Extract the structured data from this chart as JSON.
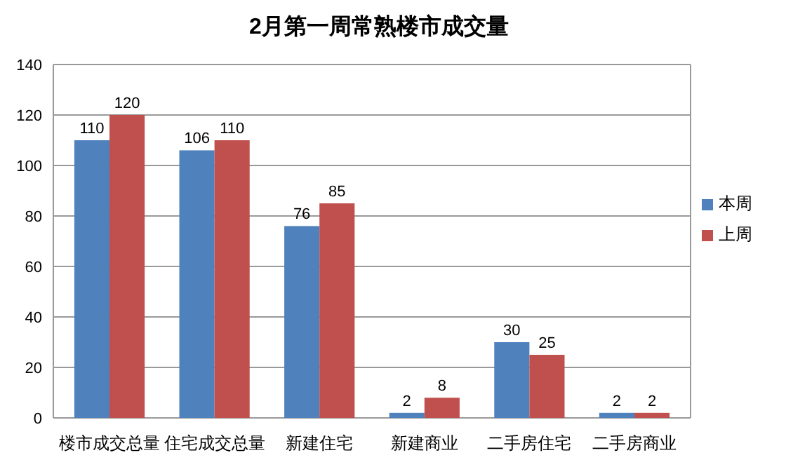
{
  "chart_data": {
    "type": "bar",
    "title": "2月第一周常熟楼市成交量",
    "categories": [
      "楼市成交总量",
      "住宅成交总量",
      "新建住宅",
      "新建商业",
      "二手房住宅",
      "二手房商业"
    ],
    "series": [
      {
        "name": "本周",
        "color": "#4f81bd",
        "values": [
          110,
          106,
          76,
          2,
          30,
          2
        ]
      },
      {
        "name": "上周",
        "color": "#c0504d",
        "values": [
          120,
          110,
          85,
          8,
          25,
          2
        ]
      }
    ],
    "ylim": [
      0,
      140
    ],
    "yticks": [
      0,
      20,
      40,
      60,
      80,
      100,
      120,
      140
    ],
    "grid": "y",
    "legend": "right",
    "data_labels": true
  }
}
